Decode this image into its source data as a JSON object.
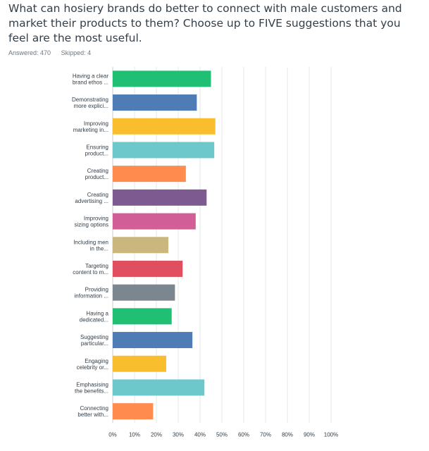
{
  "question": {
    "title": "What can hosiery brands do better to connect with male customers and market their products to them? Choose up to FIVE suggestions that you feel are the most useful."
  },
  "stats": {
    "answered": "Answered: 470",
    "skipped": "Skipped: 4"
  },
  "chart_data": {
    "type": "bar",
    "orientation": "horizontal",
    "categories": [
      [
        "Having a clear",
        "brand ethos ..."
      ],
      [
        "Demonstrating",
        "more explici..."
      ],
      [
        "Improving",
        "marketing in..."
      ],
      [
        "Ensuring",
        "product..."
      ],
      [
        "Creating",
        "product..."
      ],
      [
        "Creating",
        "advertising ..."
      ],
      [
        "Improving",
        "sizing options"
      ],
      [
        "Including men",
        "in the..."
      ],
      [
        "Targeting",
        "content to m..."
      ],
      [
        "Providing",
        "information ..."
      ],
      [
        "Having a",
        "dedicated..."
      ],
      [
        "Suggesting",
        "particular..."
      ],
      [
        "Engaging",
        "celebrity or..."
      ],
      [
        "Emphasising",
        "the benefits..."
      ],
      [
        "Connecting",
        "better with..."
      ]
    ],
    "values": [
      45,
      38.5,
      47,
      46.5,
      33.5,
      43,
      38,
      25.5,
      32,
      28.5,
      27,
      36.5,
      24.5,
      42,
      18.5
    ],
    "xlim": [
      0,
      100
    ],
    "xticks": [
      "0%",
      "10%",
      "20%",
      "30%",
      "40%",
      "50%",
      "60%",
      "70%",
      "80%",
      "90%",
      "100%"
    ],
    "grid": true,
    "colors": [
      "#21bf73",
      "#507cb6",
      "#f9be2d",
      "#6dc8cc",
      "#ff8b4f",
      "#7d5b90",
      "#d25e97",
      "#c9b77d",
      "#e04f5f",
      "#7c868e",
      "#21bf73",
      "#507cb6",
      "#f9be2d",
      "#6dc8cc",
      "#ff8b4f"
    ]
  }
}
